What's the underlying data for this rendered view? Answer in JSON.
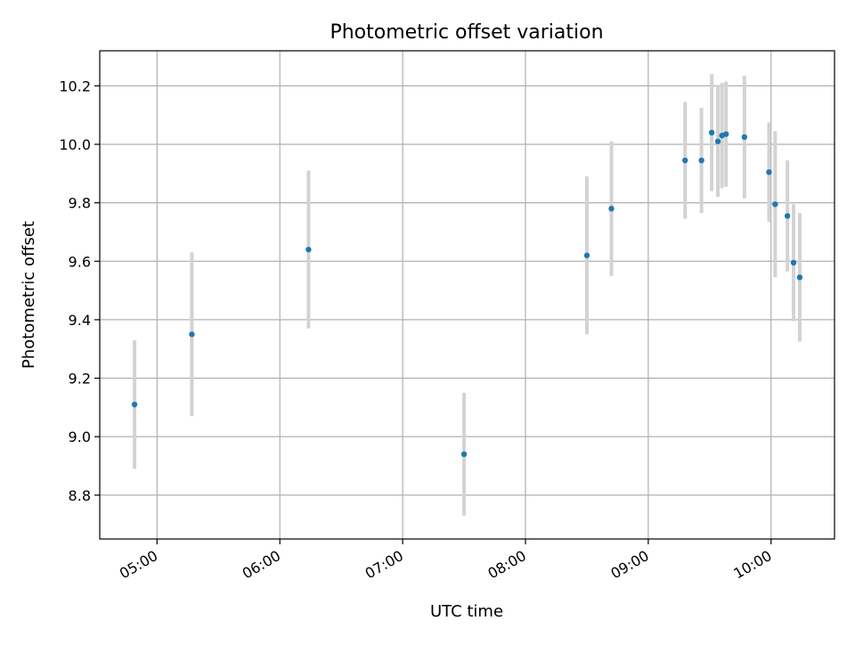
{
  "chart_data": {
    "type": "scatter",
    "title": "Photometric offset variation",
    "xlabel": "UTC time",
    "ylabel": "Photometric offset",
    "x_ticks": [
      "05:00",
      "06:00",
      "07:00",
      "08:00",
      "09:00",
      "10:00"
    ],
    "y_ticks": [
      "8.8",
      "9.0",
      "9.2",
      "9.4",
      "9.6",
      "9.8",
      "10.0",
      "10.2"
    ],
    "xlim": [
      "04:32",
      "10:31"
    ],
    "ylim": [
      8.65,
      10.32
    ],
    "grid": true,
    "colors": {
      "point": "#1f77b4",
      "errorbar": "#d3d3d3",
      "grid": "#b0b0b0"
    },
    "points": [
      {
        "time": "04:49",
        "value": 9.11,
        "err": 0.22
      },
      {
        "time": "05:17",
        "value": 9.35,
        "err": 0.28
      },
      {
        "time": "06:14",
        "value": 9.64,
        "err": 0.27
      },
      {
        "time": "07:30",
        "value": 8.94,
        "err": 0.21
      },
      {
        "time": "08:30",
        "value": 9.62,
        "err": 0.27
      },
      {
        "time": "08:42",
        "value": 9.78,
        "err": 0.23
      },
      {
        "time": "09:18",
        "value": 9.945,
        "err": 0.2
      },
      {
        "time": "09:26",
        "value": 9.945,
        "err": 0.18
      },
      {
        "time": "09:31",
        "value": 10.04,
        "err": 0.2
      },
      {
        "time": "09:34",
        "value": 10.01,
        "err": 0.19
      },
      {
        "time": "09:36",
        "value": 10.03,
        "err": 0.18
      },
      {
        "time": "09:38",
        "value": 10.035,
        "err": 0.18
      },
      {
        "time": "09:47",
        "value": 10.025,
        "err": 0.21
      },
      {
        "time": "09:59",
        "value": 9.905,
        "err": 0.17
      },
      {
        "time": "10:02",
        "value": 9.795,
        "err": 0.25
      },
      {
        "time": "10:08",
        "value": 9.755,
        "err": 0.19
      },
      {
        "time": "10:11",
        "value": 9.595,
        "err": 0.2
      },
      {
        "time": "10:14",
        "value": 9.545,
        "err": 0.22
      }
    ]
  }
}
